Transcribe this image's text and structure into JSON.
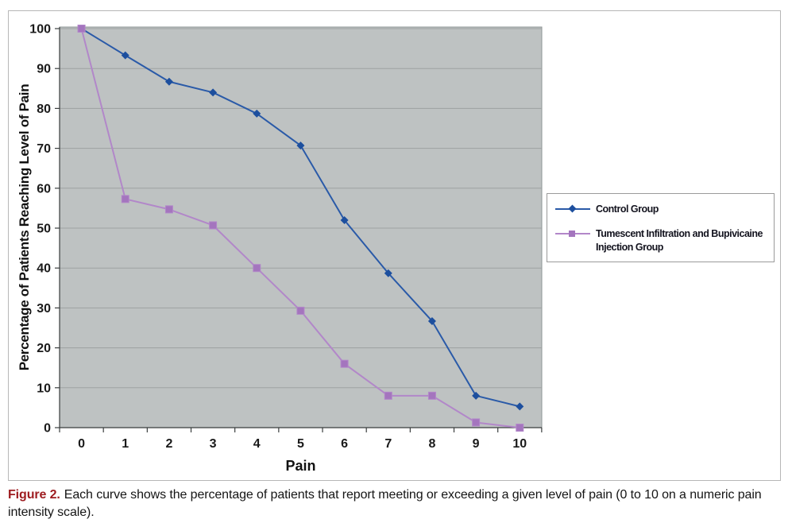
{
  "figure": {
    "caption_prefix": "Figure 2.",
    "caption_text": "Each curve shows the percentage of patients that report meeting or exceeding a given level of pain (0 to 10 on a numeric pain intensity scale)."
  },
  "legend": {
    "items": [
      {
        "label": "Control Group",
        "label2": "",
        "marker": "diamond"
      },
      {
        "label": "Tumescent Infiltration and Bupivicaine",
        "label2": "Injection Group",
        "marker": "square"
      }
    ]
  },
  "colors": {
    "control_line": "#2a5aa8",
    "control_marker": "#1d4f9e",
    "tumescent_line": "#b287c9",
    "tumescent_marker": "#a475be",
    "plot_bg": "#bec2c2",
    "gridline": "#9da1a1",
    "plot_border": "#8f9595",
    "axis": "#3a3e3e",
    "tick_text": "#1a1a1a",
    "caption_label": "#9e1c20",
    "legend_text": "#14141f"
  },
  "chart_data": {
    "type": "line",
    "title": "",
    "xlabel": "Pain",
    "ylabel": "Percentage of Patients Reaching Level of Pain",
    "x": [
      0,
      1,
      2,
      3,
      4,
      5,
      6,
      7,
      8,
      9,
      10
    ],
    "ylim": [
      0,
      100
    ],
    "ytick_step": 10,
    "grid": "horizontal",
    "legend_position": "right",
    "series": [
      {
        "name": "Control Group",
        "marker": "diamond",
        "line_color": "#2a5aa8",
        "marker_color": "#1d4f9e",
        "values": [
          100,
          93.3,
          86.7,
          84,
          78.7,
          70.7,
          52,
          38.7,
          26.7,
          8,
          5.3
        ]
      },
      {
        "name": "Tumescent Infiltration and Bupivicaine Injection Group",
        "marker": "square",
        "line_color": "#b287c9",
        "marker_color": "#a475be",
        "values": [
          100,
          57.3,
          54.7,
          50.7,
          40,
          29.3,
          16,
          8,
          8,
          1.3,
          0
        ]
      }
    ]
  }
}
